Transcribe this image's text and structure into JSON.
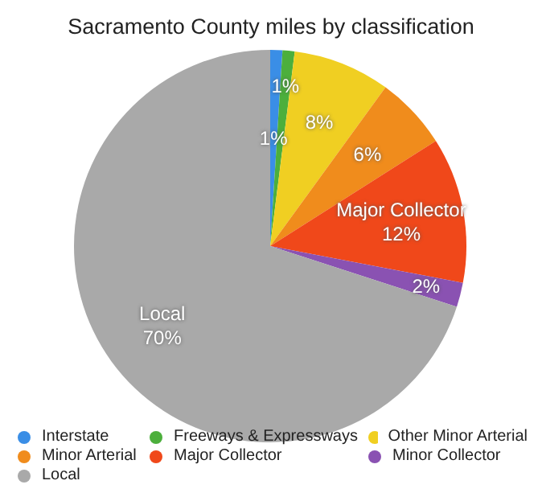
{
  "chart_data": {
    "type": "pie",
    "title": "Sacramento County miles by classification",
    "categories": [
      "Interstate",
      "Freeways & Expressways",
      "Other Minor Arterial",
      "Minor Arterial",
      "Major Collector",
      "Minor Collector",
      "Local"
    ],
    "values": [
      1,
      1,
      8,
      6,
      12,
      2,
      70
    ],
    "colors": [
      "#3a8ee6",
      "#4caf3c",
      "#f0cf22",
      "#f08c1c",
      "#f0481a",
      "#8a52b2",
      "#a9a9a9"
    ],
    "value_labels": [
      "1%",
      "1%",
      "8%",
      "6%",
      "Major Collector\n12%",
      "2%",
      "Local\n70%"
    ],
    "legend": "bottom"
  }
}
